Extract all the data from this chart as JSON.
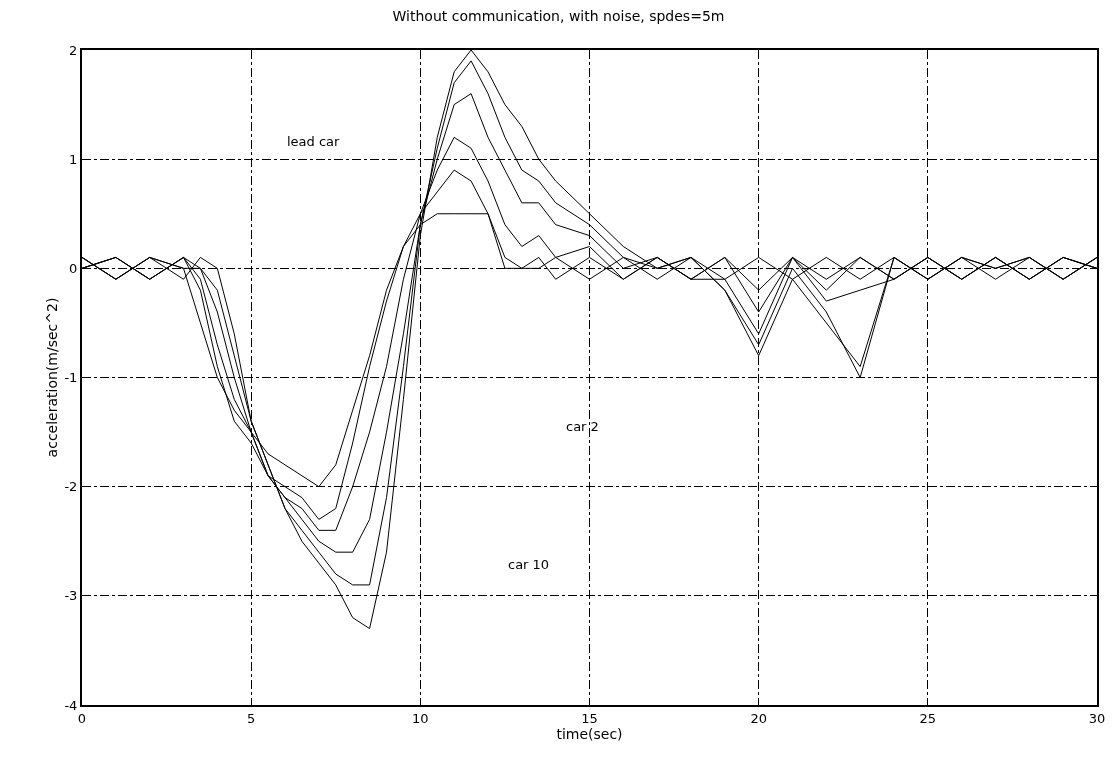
{
  "chart_data": {
    "type": "line",
    "title": "Without communication, with noise, spdes=5m",
    "xlabel": "time(sec)",
    "ylabel": "acceleration(m/sec^2)",
    "x": [
      0,
      1,
      2,
      3,
      3.5,
      4,
      4.5,
      5,
      5.5,
      6,
      6.5,
      7,
      7.5,
      8,
      8.5,
      9,
      9.5,
      10,
      10.5,
      11,
      11.5,
      12,
      12.5,
      13,
      13.5,
      14,
      15,
      16,
      17,
      18,
      19,
      20,
      21,
      22,
      23,
      24,
      25,
      26,
      27,
      28,
      29,
      30
    ],
    "series": [
      {
        "color": "#000000",
        "values": [
          0.1,
          -0.1,
          0.1,
          0,
          -0.5,
          -1.0,
          -1.3,
          -1.5,
          -1.7,
          -1.8,
          -1.9,
          -2.0,
          -1.8,
          -1.3,
          -0.8,
          -0.2,
          0.2,
          0.4,
          0.5,
          0.5,
          0.5,
          0.5,
          0,
          0,
          0,
          0.1,
          -0.1,
          0.1,
          -0.1,
          0.1,
          -0.1,
          0.1,
          -0.1,
          0.1,
          -0.1,
          0.1,
          -0.1,
          0.1,
          -0.1,
          0.1,
          -0.1,
          0.1
        ]
      },
      {
        "color": "#000000",
        "values": [
          0,
          0.1,
          -0.1,
          0.1,
          -0.2,
          -0.9,
          -1.4,
          -1.6,
          -1.9,
          -2.0,
          -2.1,
          -2.3,
          -2.2,
          -1.6,
          -0.9,
          -0.3,
          0.2,
          0.5,
          0.7,
          0.9,
          0.8,
          0.5,
          0.1,
          0,
          0.1,
          -0.1,
          0.1,
          -0.1,
          0.1,
          -0.1,
          0.1,
          -0.2,
          0.1,
          -0.1,
          0.1,
          -0.1,
          0.1,
          -0.1,
          0.1,
          -0.1,
          0.1,
          0
        ]
      },
      {
        "color": "#000000",
        "values": [
          0,
          0.1,
          -0.1,
          0.1,
          -0.1,
          -0.7,
          -1.2,
          -1.5,
          -1.9,
          -2.1,
          -2.2,
          -2.4,
          -2.4,
          -2.0,
          -1.5,
          -0.9,
          -0.1,
          0.5,
          0.9,
          1.2,
          1.1,
          0.8,
          0.4,
          0.2,
          0.3,
          0.1,
          0.2,
          -0.1,
          0.1,
          -0.1,
          0.1,
          -0.4,
          0.1,
          -0.2,
          0.1,
          -0.1,
          0.1,
          -0.1,
          0.1,
          -0.1,
          0.1,
          0
        ]
      },
      {
        "color": "#000000",
        "values": [
          0.1,
          -0.1,
          0.1,
          0,
          0,
          -0.4,
          -1.0,
          -1.5,
          -1.9,
          -2.1,
          -2.3,
          -2.5,
          -2.6,
          -2.6,
          -2.3,
          -1.5,
          -0.6,
          0.4,
          1.0,
          1.5,
          1.6,
          1.2,
          0.9,
          0.6,
          0.6,
          0.4,
          0.3,
          0,
          0.1,
          -0.1,
          -0.1,
          -0.6,
          0.1,
          -0.3,
          -0.2,
          -0.1,
          0.1,
          -0.1,
          0.1,
          -0.1,
          0.1,
          0
        ]
      },
      {
        "color": "#000000",
        "values": [
          0,
          0.1,
          -0.1,
          0.1,
          0,
          -0.2,
          -0.8,
          -1.4,
          -1.8,
          -2.2,
          -2.4,
          -2.6,
          -2.8,
          -2.9,
          -2.9,
          -2.1,
          -0.9,
          0.4,
          1.1,
          1.7,
          1.9,
          1.6,
          1.2,
          0.9,
          0.8,
          0.6,
          0.4,
          0.1,
          0,
          0.1,
          -0.2,
          -0.7,
          0,
          -0.4,
          -1.0,
          0.1,
          -0.1,
          0.1,
          0,
          0.1,
          -0.1,
          0.1
        ]
      },
      {
        "color": "#000000",
        "values": [
          0.1,
          -0.1,
          0.1,
          -0.1,
          0.1,
          0,
          -0.6,
          -1.4,
          -1.8,
          -2.2,
          -2.5,
          -2.7,
          -2.9,
          -3.2,
          -3.3,
          -2.6,
          -1.2,
          0.3,
          1.2,
          1.8,
          2.0,
          1.8,
          1.5,
          1.3,
          1.0,
          0.8,
          0.5,
          0.2,
          0,
          0.1,
          -0.2,
          -0.8,
          -0.1,
          -0.5,
          -0.9,
          0.1,
          -0.1,
          0.1,
          0,
          0.1,
          -0.1,
          0.1
        ]
      }
    ],
    "annotations": [
      "lead car",
      "car 2",
      "car 10"
    ],
    "xlim": [
      0,
      30
    ],
    "xticks": [
      0,
      5,
      10,
      15,
      20,
      25,
      30
    ],
    "ylim": [
      -4,
      2
    ],
    "yticks": [
      -4,
      -3,
      -2,
      -1,
      0,
      1,
      2
    ],
    "grid": true,
    "marker": "none",
    "line_style": "solid"
  }
}
